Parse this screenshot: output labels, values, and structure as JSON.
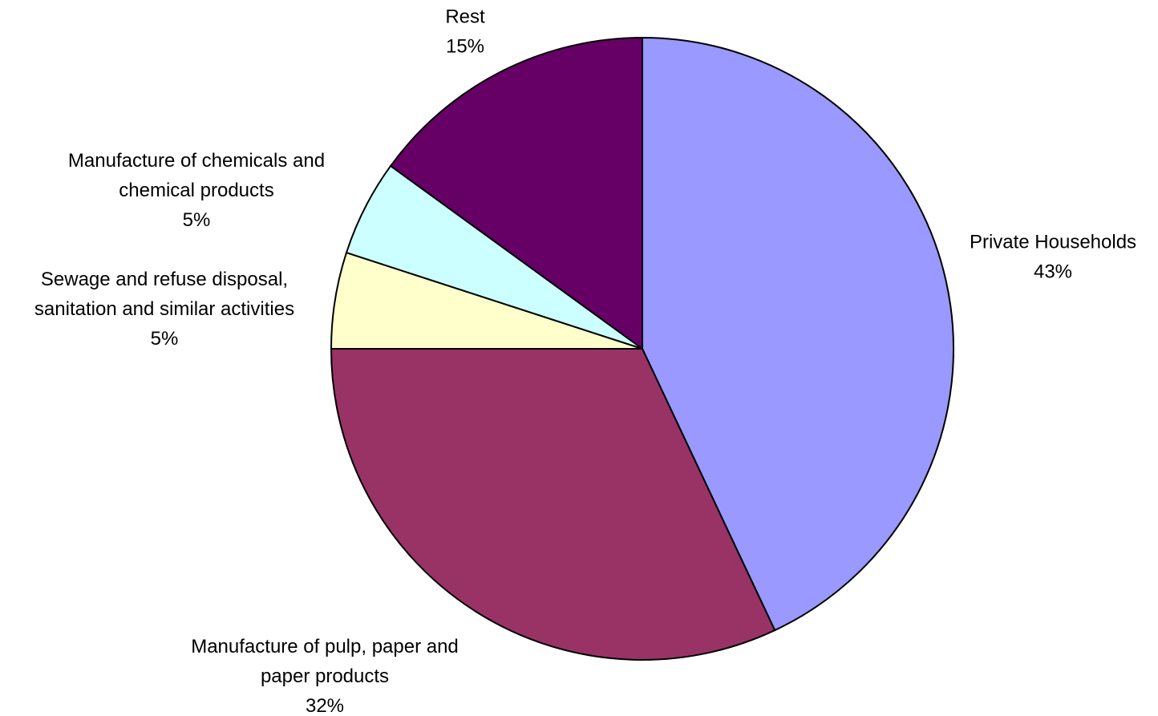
{
  "chart_data": {
    "type": "pie",
    "title": "",
    "start_angle_deg": 0,
    "direction": "clockwise",
    "slices": [
      {
        "label_lines": [
          "Private Households"
        ],
        "value": 43,
        "value_label": "43%",
        "color": "#9999FF"
      },
      {
        "label_lines": [
          "Manufacture of pulp, paper and",
          "paper products"
        ],
        "value": 32,
        "value_label": "32%",
        "color": "#993366"
      },
      {
        "label_lines": [
          "Sewage and refuse disposal,",
          "sanitation and similar activities"
        ],
        "value": 5,
        "value_label": "5%",
        "color": "#FFFFCC"
      },
      {
        "label_lines": [
          "Manufacture of chemicals and",
          "chemical products"
        ],
        "value": 5,
        "value_label": "5%",
        "color": "#CCFFFF"
      },
      {
        "label_lines": [
          "Rest"
        ],
        "value": 15,
        "value_label": "15%",
        "color": "#660066"
      }
    ]
  }
}
